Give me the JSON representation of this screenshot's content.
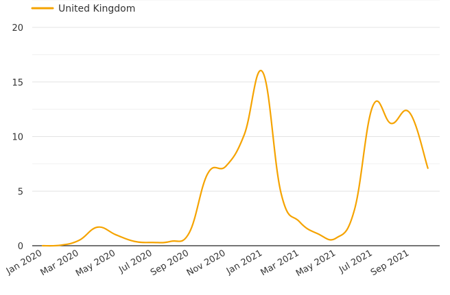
{
  "chart_data": {
    "type": "line",
    "title": "",
    "xlabel": "",
    "ylabel": "",
    "ylim": [
      0,
      20
    ],
    "yticks": [
      "0",
      "5",
      "10",
      "15",
      "20"
    ],
    "xticks": [
      "Jan 2020",
      "Mar 2020",
      "May 2020",
      "Jul 2020",
      "Sep 2020",
      "Nov 2020",
      "Jan 2021",
      "Mar 2021",
      "May 2021",
      "Jul 2021",
      "Sep 2021"
    ],
    "grid": "horizontal",
    "legend": "top-left",
    "series": [
      {
        "name": "United Kingdom",
        "color": "#f5a300",
        "x": [
          "2020-01-01",
          "2020-02-01",
          "2020-03-01",
          "2020-04-01",
          "2020-05-01",
          "2020-06-01",
          "2020-07-01",
          "2020-08-01",
          "2020-09-01",
          "2020-10-01",
          "2020-11-01",
          "2020-12-01",
          "2021-01-01",
          "2021-02-01",
          "2021-03-01",
          "2021-04-01",
          "2021-05-01",
          "2021-06-01",
          "2021-07-01",
          "2021-08-01",
          "2021-09-01",
          "2021-10-01"
        ],
        "values": [
          0.0,
          0.05,
          0.5,
          1.7,
          1.0,
          0.4,
          0.3,
          0.4,
          1.2,
          6.6,
          7.3,
          10.2,
          15.9,
          4.8,
          2.2,
          1.1,
          0.7,
          3.3,
          12.8,
          11.2,
          12.2,
          7.1
        ]
      }
    ]
  }
}
